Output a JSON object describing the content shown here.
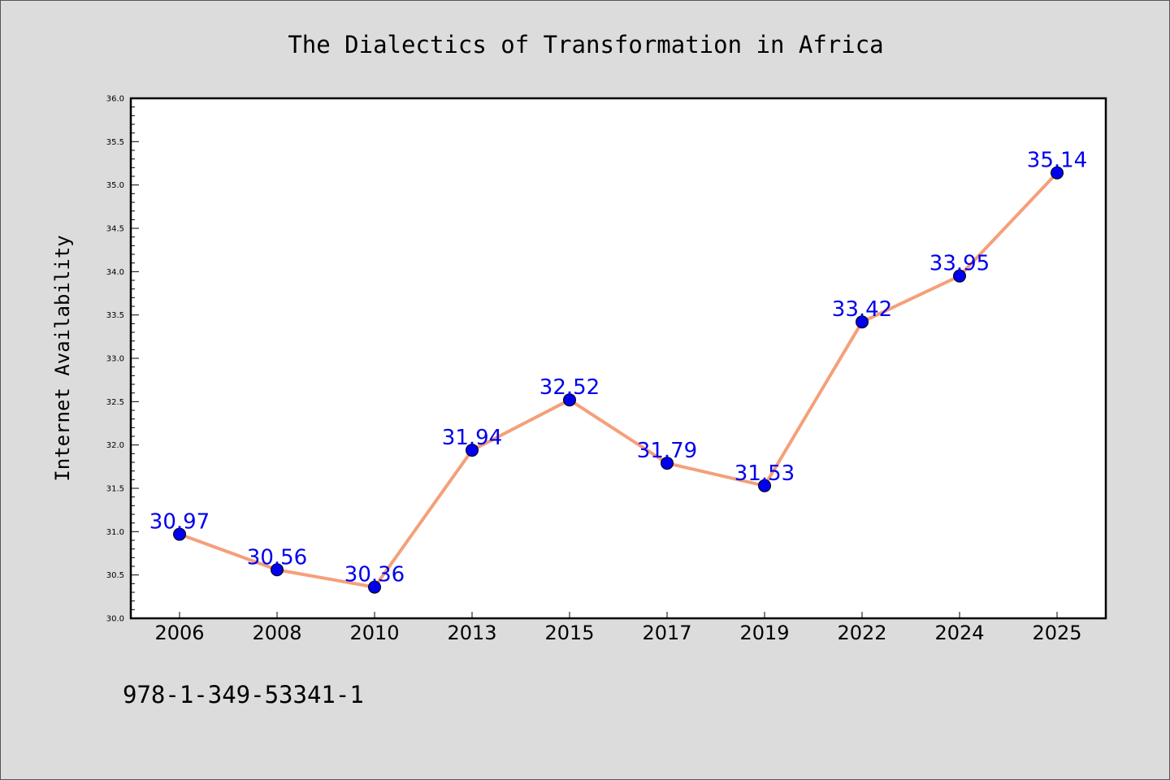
{
  "chart_data": {
    "type": "line",
    "title": "The Dialectics of Transformation in Africa",
    "xlabel": "",
    "ylabel": "Internet Availability",
    "categories": [
      "2006",
      "2008",
      "2010",
      "2013",
      "2015",
      "2017",
      "2019",
      "2022",
      "2024",
      "2025"
    ],
    "values": [
      30.97,
      30.56,
      30.36,
      31.94,
      32.52,
      31.79,
      31.53,
      33.42,
      33.95,
      35.14
    ],
    "data_labels": [
      "30.97",
      "30.56",
      "30.36",
      "31.94",
      "32.52",
      "31.79",
      "31.53",
      "33.42",
      "33.95",
      "35.14"
    ],
    "ylim": [
      30.0,
      36.0
    ],
    "yticks": [
      "30.0",
      "30.5",
      "31.0",
      "31.5",
      "32.0",
      "32.5",
      "33.0",
      "33.5",
      "34.0",
      "34.5",
      "35.0",
      "35.5",
      "36.0"
    ],
    "grid": false,
    "legend": "none",
    "line_color": "#f4a07a",
    "marker_color": "#0000ee",
    "label_color": "#0000ee"
  },
  "footer": {
    "isbn": "978-1-349-53341-1"
  }
}
